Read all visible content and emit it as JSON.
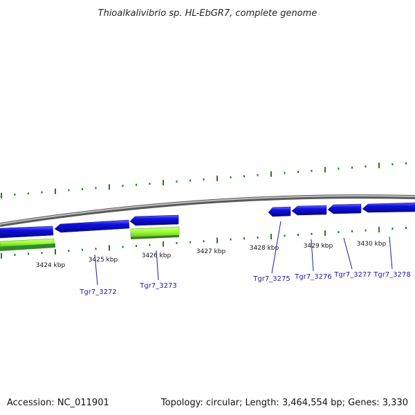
{
  "title": "Thioalkalivibrio sp. HL-EbGR7, complete genome",
  "footer": {
    "accession": "Accession: NC_011901",
    "summary": "Topology: circular; Length: 3,464,554 bp; Genes: 3,330"
  },
  "kbp_labels": [
    "3424 kbp",
    "3425 kbp",
    "3426 kbp",
    "3427 kbp",
    "3428 kbp",
    "3429 kbp",
    "3430 kbp"
  ],
  "gene_labels": [
    "Tgr7_3272",
    "Tgr7_3273",
    "Tgr7_3275",
    "Tgr7_3276",
    "Tgr7_3277",
    "Tgr7_3278"
  ],
  "colors": {
    "backbone": "#8a8a8a",
    "cds": "#1010e0",
    "rna_light": "#99ff33",
    "rna_dark": "#2e8b2e",
    "ticks": "#1f7a1f",
    "gene_label": "#1a1aa6"
  }
}
